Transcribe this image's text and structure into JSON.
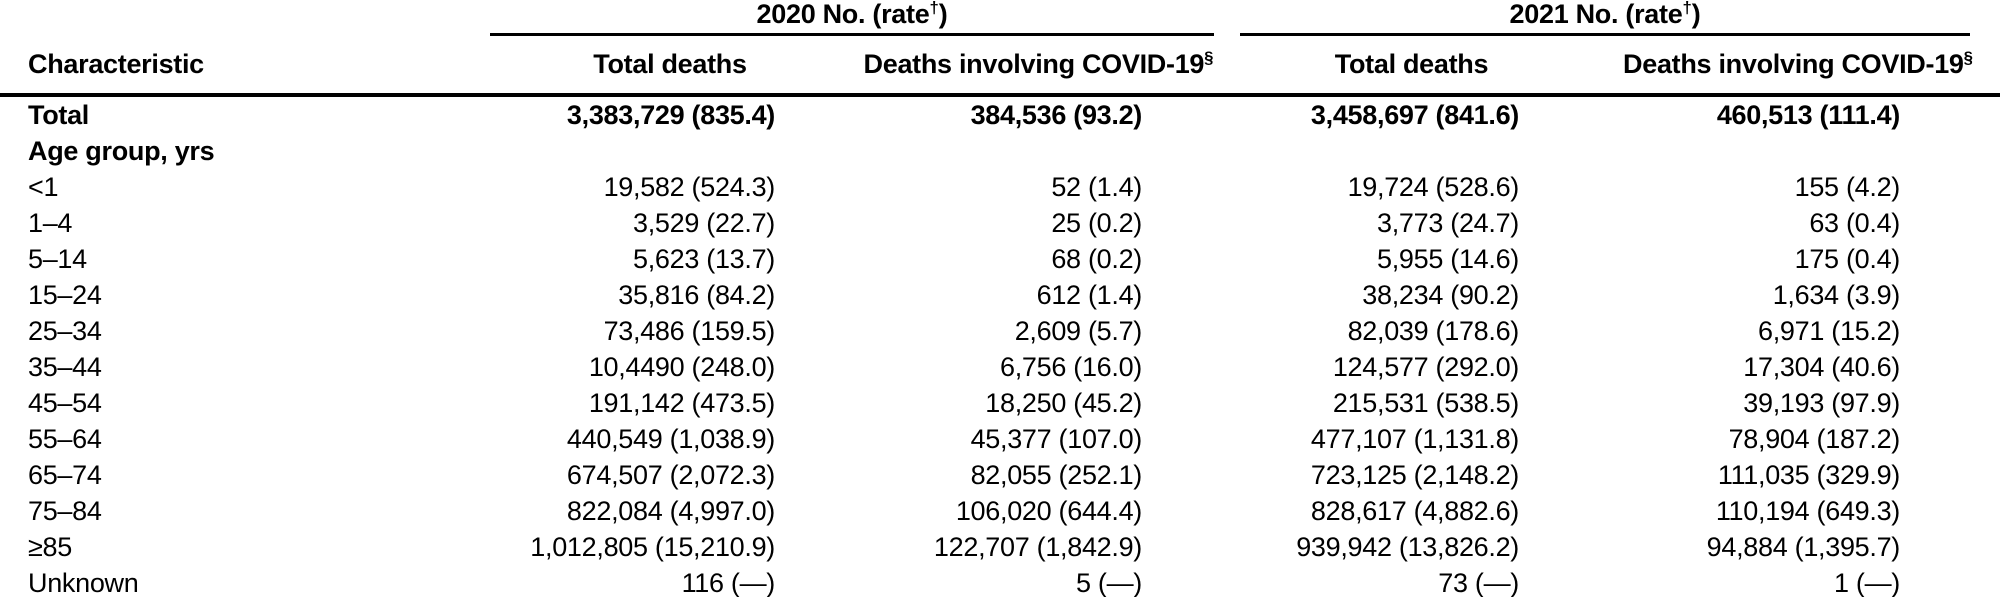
{
  "colors": {
    "background": "#ffffff",
    "text": "#000000",
    "rule": "#000000"
  },
  "table": {
    "characteristic_header": "Characteristic",
    "spanners": [
      {
        "prefix": "2020 No. (rate",
        "sup": "†",
        "suffix": ")"
      },
      {
        "prefix": "2021 No. (rate",
        "sup": "†",
        "suffix": ")"
      }
    ],
    "column_headers": [
      {
        "text": "Total deaths",
        "sup": ""
      },
      {
        "text": "Deaths involving COVID-19",
        "sup": "§"
      },
      {
        "text": "Total deaths",
        "sup": ""
      },
      {
        "text": "Deaths involving COVID-19",
        "sup": "§"
      }
    ],
    "rows": [
      {
        "label": "Total",
        "bold": true,
        "values": [
          "3,383,729 (835.4)",
          "384,536 (93.2)",
          "3,458,697 (841.6)",
          "460,513 (111.4)"
        ]
      },
      {
        "label": "Age group, yrs",
        "bold": true,
        "values": [
          "",
          "",
          "",
          ""
        ]
      },
      {
        "label": "<1",
        "bold": false,
        "values": [
          "19,582 (524.3)",
          "52 (1.4)",
          "19,724 (528.6)",
          "155 (4.2)"
        ]
      },
      {
        "label": "1–4",
        "bold": false,
        "values": [
          "3,529 (22.7)",
          "25 (0.2)",
          "3,773 (24.7)",
          "63 (0.4)"
        ]
      },
      {
        "label": "5–14",
        "bold": false,
        "values": [
          "5,623 (13.7)",
          "68 (0.2)",
          "5,955 (14.6)",
          "175 (0.4)"
        ]
      },
      {
        "label": "15–24",
        "bold": false,
        "values": [
          "35,816 (84.2)",
          "612 (1.4)",
          "38,234 (90.2)",
          "1,634 (3.9)"
        ]
      },
      {
        "label": "25–34",
        "bold": false,
        "values": [
          "73,486 (159.5)",
          "2,609 (5.7)",
          "82,039 (178.6)",
          "6,971 (15.2)"
        ]
      },
      {
        "label": "35–44",
        "bold": false,
        "values": [
          "10,4490 (248.0)",
          "6,756 (16.0)",
          "124,577 (292.0)",
          "17,304 (40.6)"
        ]
      },
      {
        "label": "45–54",
        "bold": false,
        "values": [
          "191,142 (473.5)",
          "18,250 (45.2)",
          "215,531 (538.5)",
          "39,193 (97.9)"
        ]
      },
      {
        "label": "55–64",
        "bold": false,
        "values": [
          "440,549 (1,038.9)",
          "45,377 (107.0)",
          "477,107 (1,131.8)",
          "78,904 (187.2)"
        ]
      },
      {
        "label": "65–74",
        "bold": false,
        "values": [
          "674,507 (2,072.3)",
          "82,055 (252.1)",
          "723,125 (2,148.2)",
          "111,035 (329.9)"
        ]
      },
      {
        "label": "75–84",
        "bold": false,
        "values": [
          "822,084 (4,997.0)",
          "106,020 (644.4)",
          "828,617 (4,882.6)",
          "110,194 (649.3)"
        ]
      },
      {
        "label": "≥85",
        "bold": false,
        "values": [
          "1,012,805 (15,210.9)",
          "122,707 (1,842.9)",
          "939,942 (13,826.2)",
          "94,884 (1,395.7)"
        ]
      },
      {
        "label": "Unknown",
        "bold": false,
        "values": [
          "116 (—)",
          "5 (—)",
          "73 (—)",
          "1 (—)"
        ]
      }
    ]
  }
}
